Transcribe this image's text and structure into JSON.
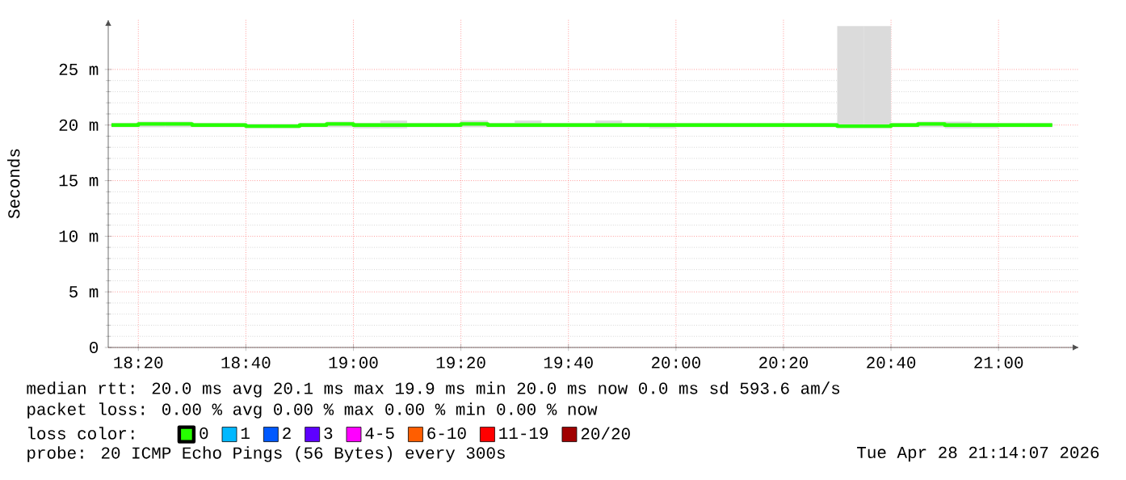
{
  "chart_data": {
    "type": "step",
    "ylabel": "Seconds",
    "legend_title": "loss color:",
    "x": [
      18.25,
      18.3333,
      18.4167,
      18.5,
      18.5833,
      18.6667,
      18.75,
      18.8333,
      18.9167,
      19,
      19.0833,
      19.1667,
      19.25,
      19.3333,
      19.4167,
      19.5,
      19.5833,
      19.6667,
      19.75,
      19.8333,
      19.9167,
      20,
      20.0833,
      20.1667,
      20.25,
      20.3333,
      20.4167,
      20.5,
      20.5833,
      20.6667,
      20.75,
      20.8333,
      20.9167,
      21,
      21.0833,
      21.1667
    ],
    "series": [
      {
        "name": "0",
        "color": "#26ff00",
        "values": [
          20.0,
          20.1,
          20.1,
          20.0,
          20.0,
          19.9,
          19.9,
          20.0,
          20.1,
          20.0,
          20.0,
          20.0,
          20.0,
          20.1,
          20.0,
          20.0,
          20.0,
          20.0,
          20.0,
          20.0,
          20.0,
          20.0,
          20.0,
          20.0,
          20.0,
          20.0,
          20.0,
          19.9,
          19.9,
          20.0,
          20.1,
          20.0,
          20.0,
          20.0,
          20.0,
          20.0
        ],
        "lower": [
          19.8,
          19.8,
          19.8,
          19.8,
          19.8,
          19.7,
          19.7,
          19.8,
          19.8,
          19.7,
          19.7,
          19.8,
          19.8,
          19.8,
          19.8,
          19.8,
          19.8,
          19.8,
          19.8,
          19.8,
          19.7,
          19.8,
          19.8,
          19.8,
          19.8,
          19.8,
          19.8,
          19.7,
          19.7,
          19.8,
          19.8,
          19.7,
          19.7,
          19.8,
          19.8,
          19.8
        ],
        "upper": [
          20.2,
          20.3,
          20.3,
          20.2,
          20.2,
          20.1,
          20.1,
          20.2,
          20.3,
          20.2,
          20.4,
          20.2,
          20.2,
          20.4,
          20.2,
          20.4,
          20.2,
          20.2,
          20.4,
          20.2,
          20.2,
          20.2,
          20.2,
          20.2,
          20.2,
          20.2,
          20.2,
          28.9,
          28.9,
          20.2,
          20.3,
          20.3,
          20.2,
          20.2,
          20.2,
          20.2
        ]
      },
      {
        "name": "1",
        "color": "#00b8ff",
        "values": [
          null,
          null,
          null,
          null,
          null,
          null,
          null,
          null,
          null,
          null,
          null,
          null,
          null,
          null,
          null,
          null,
          null,
          null,
          null,
          null,
          null,
          null,
          null,
          null,
          null,
          null,
          null,
          null,
          null,
          null,
          null,
          null,
          null,
          null,
          null,
          null
        ]
      },
      {
        "name": "2",
        "color": "#0059ff",
        "values": [
          null,
          null,
          null,
          null,
          null,
          null,
          null,
          null,
          null,
          null,
          null,
          null,
          null,
          null,
          null,
          null,
          null,
          null,
          null,
          null,
          null,
          null,
          null,
          null,
          null,
          null,
          null,
          null,
          null,
          null,
          null,
          null,
          null,
          null,
          null,
          null
        ]
      },
      {
        "name": "3",
        "color": "#5e00ff",
        "values": [
          null,
          null,
          null,
          null,
          null,
          null,
          null,
          null,
          null,
          null,
          null,
          null,
          null,
          null,
          null,
          null,
          null,
          null,
          null,
          null,
          null,
          null,
          null,
          null,
          null,
          null,
          null,
          null,
          null,
          null,
          null,
          null,
          null,
          null,
          null,
          null
        ]
      },
      {
        "name": "4-5",
        "color": "#ff00ff",
        "values": [
          null,
          null,
          null,
          null,
          null,
          null,
          null,
          null,
          null,
          null,
          null,
          null,
          null,
          null,
          null,
          null,
          null,
          null,
          null,
          null,
          null,
          null,
          null,
          null,
          null,
          null,
          null,
          null,
          null,
          null,
          null,
          null,
          null,
          null,
          null,
          null
        ]
      },
      {
        "name": "6-10",
        "color": "#ff5e00",
        "values": [
          null,
          null,
          null,
          null,
          null,
          null,
          null,
          null,
          null,
          null,
          null,
          null,
          null,
          null,
          null,
          null,
          null,
          null,
          null,
          null,
          null,
          null,
          null,
          null,
          null,
          null,
          null,
          null,
          null,
          null,
          null,
          null,
          null,
          null,
          null,
          null
        ]
      },
      {
        "name": "11-19",
        "color": "#ff0000",
        "values": [
          null,
          null,
          null,
          null,
          null,
          null,
          null,
          null,
          null,
          null,
          null,
          null,
          null,
          null,
          null,
          null,
          null,
          null,
          null,
          null,
          null,
          null,
          null,
          null,
          null,
          null,
          null,
          null,
          null,
          null,
          null,
          null,
          null,
          null,
          null,
          null
        ]
      },
      {
        "name": "20/20",
        "color": "#a10000",
        "values": [
          null,
          null,
          null,
          null,
          null,
          null,
          null,
          null,
          null,
          null,
          null,
          null,
          null,
          null,
          null,
          null,
          null,
          null,
          null,
          null,
          null,
          null,
          null,
          null,
          null,
          null,
          null,
          null,
          null,
          null,
          null,
          null,
          null,
          null,
          null,
          null
        ]
      }
    ],
    "xlim": [
      18.24,
      21.25
    ],
    "xticks": [
      {
        "value": 18.3333,
        "label": "18:20"
      },
      {
        "value": 18.6667,
        "label": "18:40"
      },
      {
        "value": 19,
        "label": "19:00"
      },
      {
        "value": 19.3333,
        "label": "19:20"
      },
      {
        "value": 19.6667,
        "label": "19:40"
      },
      {
        "value": 20,
        "label": "20:00"
      },
      {
        "value": 20.3333,
        "label": "20:20"
      },
      {
        "value": 20.6667,
        "label": "20:40"
      },
      {
        "value": 21,
        "label": "21:00"
      }
    ],
    "ylim": [
      0,
      29.5
    ],
    "yticks": [
      {
        "value": 0,
        "label": "0"
      },
      {
        "value": 5,
        "label": "5 m"
      },
      {
        "value": 10,
        "label": "10 m"
      },
      {
        "value": 15,
        "label": "15 m"
      },
      {
        "value": 20,
        "label": "20 m"
      },
      {
        "value": 25,
        "label": "25 m"
      }
    ],
    "grid": true,
    "legend": "bottom",
    "line_style": "solid",
    "marker": "none",
    "annotations": [
      "median rtt: 20.0 ms avg 20.1 ms max 19.9 ms min 20.0 ms now 0.0 ms sd 593.6 am/s",
      "packet loss: 0.00 % avg 0.00 % max 0.00 % min 0.00 % now",
      "probe: 20 ICMP Echo Pings (56 Bytes) every 300s",
      "Tue Apr 28 21:14:07 2026"
    ]
  }
}
